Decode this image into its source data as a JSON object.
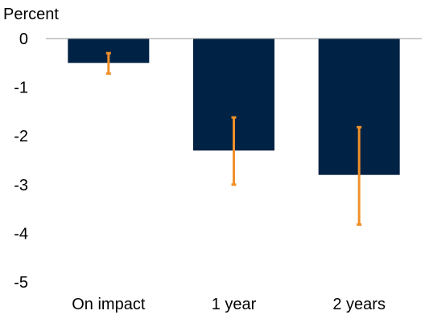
{
  "chart_data": {
    "type": "bar",
    "title": "",
    "unit_label": "Percent",
    "xlabel": "",
    "ylabel": "Percent",
    "categories": [
      "On impact",
      "1 year",
      "2 years"
    ],
    "values": [
      -0.5,
      -2.3,
      -2.8
    ],
    "error_low": [
      -0.72,
      -3.0,
      -3.82
    ],
    "error_high": [
      -0.3,
      -1.62,
      -1.82
    ],
    "ylim": [
      -5,
      0
    ],
    "yticks": [
      0,
      -1,
      -2,
      -3,
      -4,
      -5
    ],
    "ytick_labels": [
      "0",
      "-1",
      "-2",
      "-3",
      "-4",
      "-5"
    ],
    "grid": false,
    "legend": "none",
    "colors": {
      "bar": "#002244",
      "error_bar": "#F0902A",
      "axis_line": "#999999",
      "text": "#000000"
    }
  }
}
